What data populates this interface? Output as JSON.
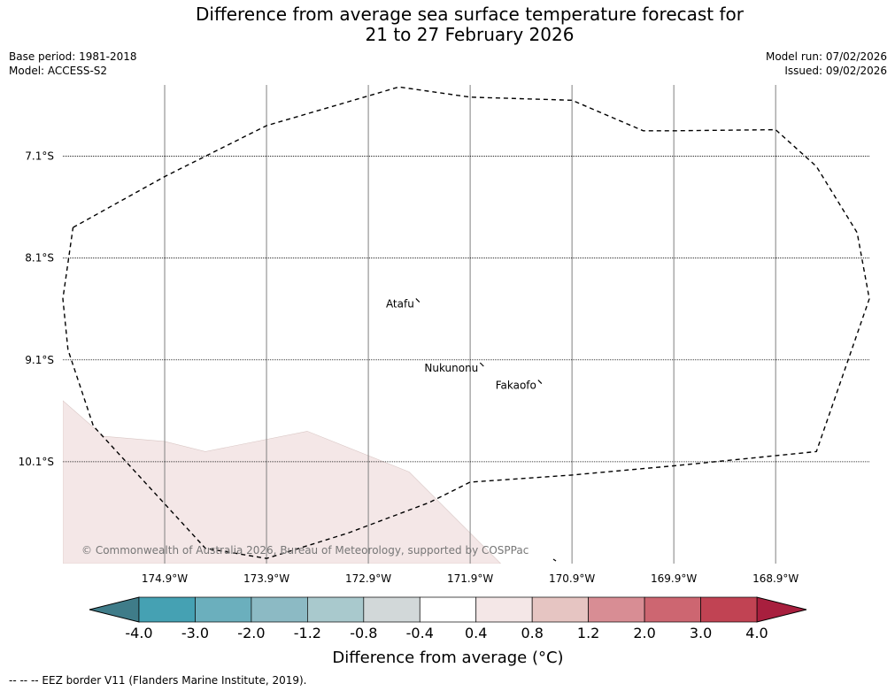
{
  "title_line1": "Difference from average sea surface temperature forecast for",
  "title_line2": "21 to 27 February 2026",
  "meta_left": {
    "base_period": "Base period: 1981-2018",
    "model": "Model: ACCESS-S2"
  },
  "meta_right": {
    "model_run": "Model run: 07/02/2026",
    "issued": "Issued: 09/02/2026"
  },
  "footer": "--  --  -- EEZ border V11 (Flanders Marine Institute, 2019).",
  "copyright": "© Commonwealth of Australia 2026, Bureau of Meteorology, supported by COSPPac",
  "places": [
    {
      "name": "Atafu",
      "lon": -172.45,
      "lat": -8.55
    },
    {
      "name": "Nukunonu",
      "lon": -171.82,
      "lat": -9.18
    },
    {
      "name": "Fakaofo",
      "lon": -171.25,
      "lat": -9.35
    }
  ],
  "chart_data": {
    "type": "heatmap",
    "title": "Difference from average sea surface temperature forecast for 21 to 27 February 2026",
    "lon_range": [
      -175.9,
      -167.98
    ],
    "lat_range": [
      -11.1,
      -6.4
    ],
    "lon_ticks": [
      "174.9°W",
      "173.9°W",
      "172.9°W",
      "171.9°W",
      "170.9°W",
      "169.9°W",
      "168.9°W"
    ],
    "lon_values": [
      -174.9,
      -173.9,
      -172.9,
      -171.9,
      -170.9,
      -169.9,
      -168.9
    ],
    "lat_ticks": [
      "7.1°S",
      "8.1°S",
      "9.1°S",
      "10.1°S"
    ],
    "lat_values": [
      -7.1,
      -8.1,
      -9.1,
      -10.1
    ],
    "eez_border": [
      [
        -175.8,
        -7.8
      ],
      [
        -174.9,
        -7.3
      ],
      [
        -173.9,
        -6.8
      ],
      [
        -172.6,
        -6.42
      ],
      [
        -171.9,
        -6.52
      ],
      [
        -170.9,
        -6.55
      ],
      [
        -170.2,
        -6.85
      ],
      [
        -169.9,
        -6.85
      ],
      [
        -168.9,
        -6.84
      ],
      [
        -168.5,
        -7.2
      ],
      [
        -168.1,
        -7.85
      ],
      [
        -167.98,
        -8.5
      ],
      [
        -168.5,
        -10.0
      ],
      [
        -169.9,
        -10.14
      ],
      [
        -170.9,
        -10.23
      ],
      [
        -171.9,
        -10.3
      ],
      [
        -172.3,
        -10.5
      ],
      [
        -173.1,
        -10.8
      ],
      [
        -173.9,
        -11.05
      ],
      [
        -174.5,
        -10.95
      ],
      [
        -175.6,
        -9.75
      ],
      [
        -175.85,
        -9.0
      ],
      [
        -175.9,
        -8.5
      ],
      [
        -175.8,
        -7.8
      ]
    ],
    "anomaly_regions": [
      {
        "bin": "0.4 to 0.8",
        "polygon": [
          [
            -175.9,
            -9.5
          ],
          [
            -175.5,
            -9.85
          ],
          [
            -174.9,
            -9.9
          ],
          [
            -174.5,
            -10.0
          ],
          [
            -173.5,
            -9.8
          ],
          [
            -172.5,
            -10.2
          ],
          [
            -171.6,
            -11.1
          ],
          [
            -175.9,
            -11.1
          ]
        ]
      }
    ],
    "colorbar": {
      "label": "Difference from average (°C)",
      "ticks": [
        "-4.0",
        "-3.0",
        "-2.0",
        "-1.2",
        "-0.8",
        "-0.4",
        "0.4",
        "0.8",
        "1.2",
        "2.0",
        "3.0",
        "4.0"
      ],
      "colors": [
        "#45a1b3",
        "#6bafbd",
        "#8cbac4",
        "#a9c9cd",
        "#d2d8d9",
        "#ffffff",
        "#f4e7e7",
        "#e6c5c2",
        "#d88d94",
        "#cd6671",
        "#c14353"
      ],
      "extend_low_color": "#3f7c89",
      "extend_high_color": "#a81f3e",
      "region_fill": "#f4e7e7",
      "grid_color": "#808080"
    }
  }
}
